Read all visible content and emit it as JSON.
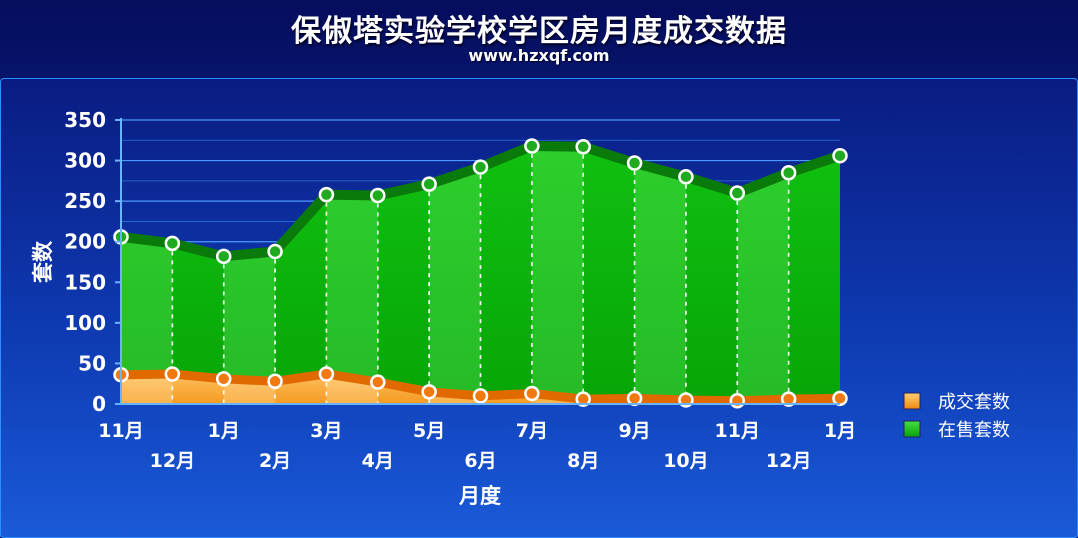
{
  "header": {
    "title": "保俶塔实验学校学区房月度成交数据",
    "subtitle": "www.hzxqf.com"
  },
  "chart_data": {
    "type": "area",
    "title": "保俶塔实验学校学区房月度成交数据",
    "subtitle": "www.hzxqf.com",
    "xlabel": "月度",
    "ylabel": "套数",
    "ylim": [
      0,
      350
    ],
    "yticks": [
      0,
      50,
      100,
      150,
      200,
      250,
      300,
      350
    ],
    "grid": true,
    "legend_position": "right",
    "categories": [
      "11月",
      "12月",
      "1月",
      "2月",
      "3月",
      "4月",
      "5月",
      "6月",
      "7月",
      "8月",
      "9月",
      "10月",
      "11月",
      "12月",
      "1月"
    ],
    "series": [
      {
        "name": "成交套数",
        "color": "#f08a10",
        "values": [
          36,
          37,
          31,
          28,
          37,
          27,
          15,
          10,
          13,
          6,
          7,
          5,
          4,
          6,
          7
        ]
      },
      {
        "name": "在售套数",
        "color": "#1ec81e",
        "values": [
          206,
          198,
          182,
          188,
          258,
          257,
          271,
          292,
          318,
          317,
          297,
          280,
          260,
          285,
          306
        ]
      }
    ]
  }
}
